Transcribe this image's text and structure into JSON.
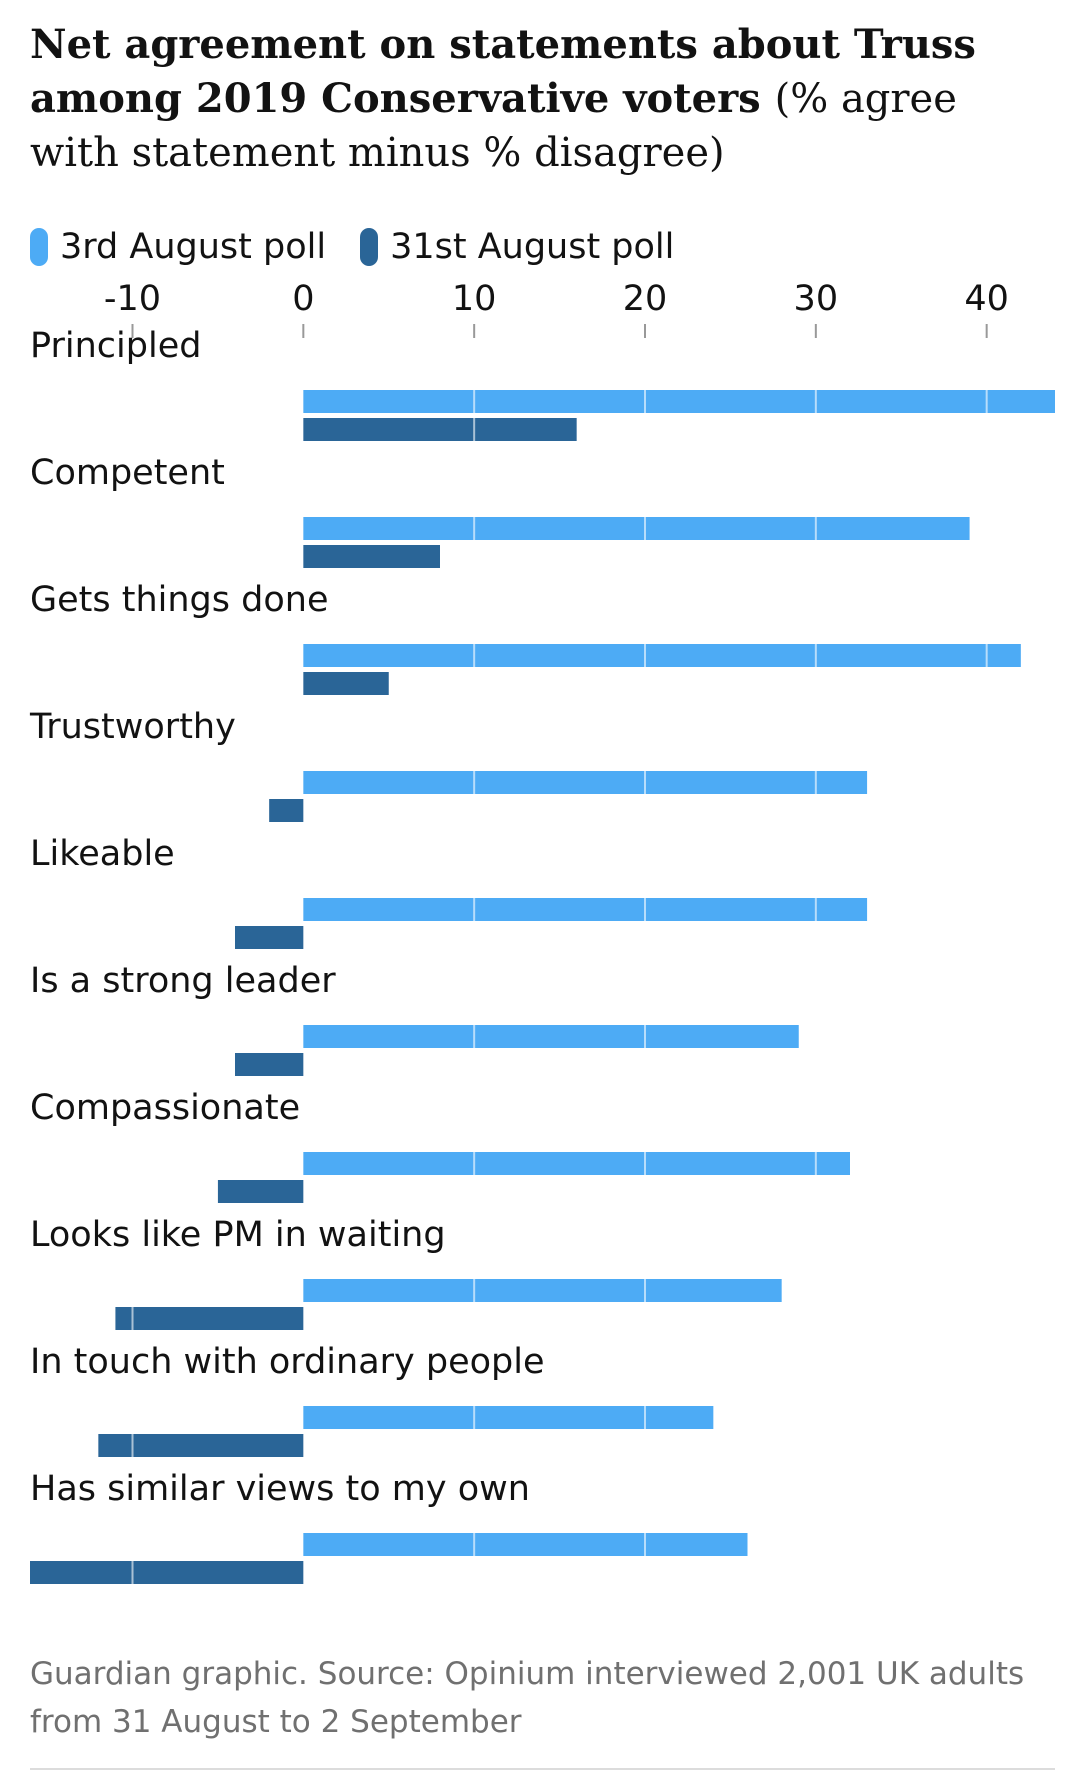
{
  "title": {
    "bold": "Net agreement on statements about Truss among 2019 Conservative voters",
    "light": "(% agree with statement minus % disagree)"
  },
  "legend": [
    {
      "label": "3rd August poll",
      "color": "#4dabf5"
    },
    {
      "label": "31st August poll",
      "color": "#2a6597"
    }
  ],
  "footer": "Guardian graphic. Source: Opinium interviewed 2,001 UK adults from 31 August to 2 September",
  "chart_data": {
    "type": "bar",
    "orientation": "horizontal",
    "title": "Net agreement on statements about Truss among 2019 Conservative voters",
    "xlabel": "",
    "ylabel": "",
    "xlim": [
      -16,
      44
    ],
    "x_ticks": [
      -10,
      0,
      10,
      20,
      30,
      40
    ],
    "x_tick_labels": [
      "-10",
      "0",
      "10",
      "20",
      "30",
      "40"
    ],
    "grid": true,
    "legend_position": "top-left",
    "categories": [
      "Principled",
      "Competent",
      "Gets things done",
      "Trustworthy",
      "Likeable",
      "Is a strong leader",
      "Compassionate",
      "Looks like PM in waiting",
      "In touch with ordinary people",
      "Has similar views to my own"
    ],
    "series": [
      {
        "name": "3rd August poll",
        "color": "#4dabf5",
        "values": [
          44,
          39,
          42,
          33,
          33,
          29,
          32,
          28,
          24,
          26
        ]
      },
      {
        "name": "31st August poll",
        "color": "#2a6597",
        "values": [
          16,
          8,
          5,
          -2,
          -4,
          -4,
          -5,
          -11,
          -12,
          -16
        ]
      }
    ]
  }
}
